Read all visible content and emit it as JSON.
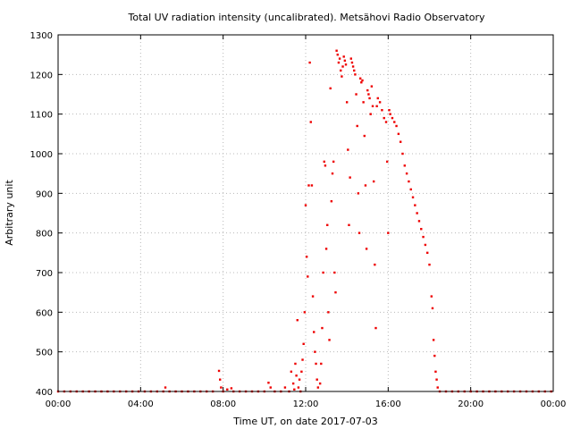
{
  "chart_data": {
    "type": "scatter",
    "title": "Total UV radiation intensity (uncalibrated). Metsähovi Radio Observatory",
    "xlabel": "Time UT, on date 2017-07-03",
    "ylabel": "Arbitrary unit",
    "xlim": [
      "00:00",
      "24:00"
    ],
    "ylim": [
      400,
      1300
    ],
    "x_ticks": [
      "00:00",
      "04:00",
      "08:00",
      "12:00",
      "16:00",
      "20:00",
      "00:00"
    ],
    "y_ticks": [
      400,
      500,
      600,
      700,
      800,
      900,
      1000,
      1100,
      1200,
      1300
    ],
    "grid": true,
    "series_color": "#ee0000",
    "series": [
      {
        "x_unit": "hours UT",
        "points": [
          [
            0.0,
            400
          ],
          [
            0.3,
            400
          ],
          [
            0.6,
            400
          ],
          [
            0.9,
            400
          ],
          [
            1.2,
            400
          ],
          [
            1.5,
            400
          ],
          [
            1.8,
            400
          ],
          [
            2.1,
            400
          ],
          [
            2.4,
            400
          ],
          [
            2.7,
            400
          ],
          [
            3.0,
            400
          ],
          [
            3.3,
            400
          ],
          [
            3.6,
            400
          ],
          [
            3.9,
            400
          ],
          [
            4.2,
            400
          ],
          [
            4.5,
            400
          ],
          [
            4.8,
            400
          ],
          [
            5.1,
            400
          ],
          [
            5.2,
            410
          ],
          [
            5.4,
            400
          ],
          [
            5.7,
            400
          ],
          [
            6.0,
            400
          ],
          [
            6.3,
            400
          ],
          [
            6.6,
            400
          ],
          [
            6.9,
            400
          ],
          [
            7.2,
            400
          ],
          [
            7.5,
            400
          ],
          [
            7.8,
            452
          ],
          [
            7.85,
            430
          ],
          [
            7.9,
            410
          ],
          [
            8.0,
            400
          ],
          [
            8.2,
            405
          ],
          [
            8.4,
            408
          ],
          [
            8.5,
            400
          ],
          [
            8.8,
            400
          ],
          [
            9.1,
            400
          ],
          [
            9.4,
            400
          ],
          [
            9.7,
            400
          ],
          [
            10.0,
            400
          ],
          [
            10.2,
            422
          ],
          [
            10.3,
            410
          ],
          [
            10.5,
            400
          ],
          [
            10.8,
            400
          ],
          [
            11.0,
            410
          ],
          [
            11.2,
            400
          ],
          [
            11.3,
            450
          ],
          [
            11.4,
            420
          ],
          [
            11.45,
            405
          ],
          [
            11.5,
            470
          ],
          [
            11.55,
            440
          ],
          [
            11.6,
            580
          ],
          [
            11.65,
            410
          ],
          [
            11.7,
            430
          ],
          [
            11.75,
            400
          ],
          [
            11.8,
            450
          ],
          [
            11.85,
            480
          ],
          [
            11.9,
            520
          ],
          [
            11.95,
            600
          ],
          [
            12.0,
            870
          ],
          [
            12.05,
            740
          ],
          [
            12.1,
            690
          ],
          [
            12.15,
            920
          ],
          [
            12.2,
            1230
          ],
          [
            12.25,
            1080
          ],
          [
            12.3,
            920
          ],
          [
            12.35,
            640
          ],
          [
            12.4,
            550
          ],
          [
            12.45,
            500
          ],
          [
            12.5,
            470
          ],
          [
            12.55,
            430
          ],
          [
            12.6,
            410
          ],
          [
            12.7,
            420
          ],
          [
            12.75,
            470
          ],
          [
            12.8,
            560
          ],
          [
            12.85,
            700
          ],
          [
            12.9,
            980
          ],
          [
            12.95,
            970
          ],
          [
            13.0,
            760
          ],
          [
            13.05,
            820
          ],
          [
            13.1,
            600
          ],
          [
            13.15,
            530
          ],
          [
            13.2,
            1165
          ],
          [
            13.25,
            880
          ],
          [
            13.3,
            950
          ],
          [
            13.35,
            980
          ],
          [
            13.4,
            700
          ],
          [
            13.45,
            650
          ],
          [
            13.5,
            1260
          ],
          [
            13.55,
            1250
          ],
          [
            13.6,
            1230
          ],
          [
            13.65,
            1240
          ],
          [
            13.7,
            1210
          ],
          [
            13.75,
            1195
          ],
          [
            13.8,
            1220
          ],
          [
            13.85,
            1245
          ],
          [
            13.9,
            1235
          ],
          [
            13.95,
            1225
          ],
          [
            14.0,
            1130
          ],
          [
            14.05,
            1010
          ],
          [
            14.1,
            820
          ],
          [
            14.15,
            940
          ],
          [
            14.2,
            1240
          ],
          [
            14.25,
            1230
          ],
          [
            14.3,
            1220
          ],
          [
            14.35,
            1210
          ],
          [
            14.4,
            1200
          ],
          [
            14.45,
            1150
          ],
          [
            14.5,
            1070
          ],
          [
            14.55,
            900
          ],
          [
            14.6,
            800
          ],
          [
            14.65,
            1190
          ],
          [
            14.7,
            1180
          ],
          [
            14.75,
            1185
          ],
          [
            14.8,
            1130
          ],
          [
            14.85,
            1045
          ],
          [
            14.9,
            920
          ],
          [
            14.95,
            760
          ],
          [
            15.0,
            1160
          ],
          [
            15.05,
            1150
          ],
          [
            15.1,
            1140
          ],
          [
            15.15,
            1100
          ],
          [
            15.2,
            1170
          ],
          [
            15.25,
            1120
          ],
          [
            15.3,
            930
          ],
          [
            15.35,
            720
          ],
          [
            15.4,
            560
          ],
          [
            15.45,
            1120
          ],
          [
            15.5,
            1140
          ],
          [
            15.6,
            1130
          ],
          [
            15.7,
            1110
          ],
          [
            15.8,
            1090
          ],
          [
            15.9,
            1080
          ],
          [
            15.95,
            980
          ],
          [
            16.0,
            800
          ],
          [
            16.05,
            1110
          ],
          [
            16.1,
            1100
          ],
          [
            16.2,
            1090
          ],
          [
            16.3,
            1080
          ],
          [
            16.4,
            1070
          ],
          [
            16.5,
            1050
          ],
          [
            16.6,
            1030
          ],
          [
            16.7,
            1000
          ],
          [
            16.8,
            970
          ],
          [
            16.9,
            950
          ],
          [
            17.0,
            930
          ],
          [
            17.1,
            910
          ],
          [
            17.2,
            890
          ],
          [
            17.3,
            870
          ],
          [
            17.4,
            850
          ],
          [
            17.5,
            830
          ],
          [
            17.6,
            810
          ],
          [
            17.7,
            790
          ],
          [
            17.8,
            770
          ],
          [
            17.9,
            750
          ],
          [
            18.0,
            720
          ],
          [
            18.1,
            640
          ],
          [
            18.15,
            610
          ],
          [
            18.2,
            530
          ],
          [
            18.25,
            490
          ],
          [
            18.3,
            450
          ],
          [
            18.35,
            430
          ],
          [
            18.4,
            410
          ],
          [
            18.5,
            400
          ],
          [
            18.8,
            400
          ],
          [
            19.1,
            400
          ],
          [
            19.4,
            400
          ],
          [
            19.7,
            400
          ],
          [
            20.0,
            400
          ],
          [
            20.3,
            400
          ],
          [
            20.6,
            400
          ],
          [
            20.9,
            400
          ],
          [
            21.2,
            400
          ],
          [
            21.5,
            400
          ],
          [
            21.8,
            400
          ],
          [
            22.1,
            400
          ],
          [
            22.4,
            400
          ],
          [
            22.7,
            400
          ],
          [
            23.0,
            400
          ],
          [
            23.3,
            400
          ],
          [
            23.6,
            400
          ],
          [
            23.9,
            400
          ]
        ]
      }
    ]
  }
}
